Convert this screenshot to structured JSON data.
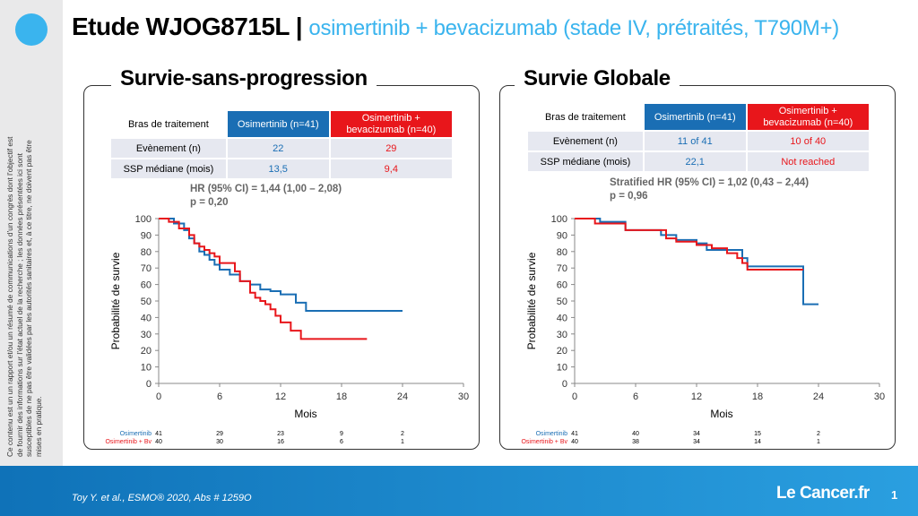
{
  "slide": {
    "title_main": "Etude WJOG8715L |",
    "title_sub": "osimertinib + bevacizumab (stade IV, prétraités, T790M+)",
    "sidebar_note": "Ce contenu est un un rapport et/ou un résumé de communications d’un congrès dont l’objectif est de fournir des informations sur l’état actuel de la recherche ; les données présentées ici sont susceptibles de ne pas être validées par les autorités sanitaires et, à ce titre, ne doivent pas être mises en pratique.",
    "citation": "Toy Y. et al., ESMO® 2020, Abs # 1259O",
    "logo_text": "Le Cancer.fr",
    "page_number": "1",
    "colors": {
      "blue": "#1a6eb4",
      "red": "#e8161b",
      "accent": "#3ab4ee"
    }
  },
  "pfs": {
    "title": "Survie-sans-progression",
    "table": {
      "header": [
        "Bras de traitement",
        "Osimertinib (n=41)",
        "Osimertinib + bevacizumab (n=40)"
      ],
      "rows": [
        [
          "Evènement (n)",
          "22",
          "29"
        ],
        [
          "SSP médiane (mois)",
          "13,5",
          "9,4"
        ]
      ]
    },
    "hr_line1": "HR (95% CI) = 1,44 (1,00 – 2,08)",
    "hr_line2": "p = 0,20"
  },
  "os": {
    "title": "Survie Globale",
    "table": {
      "header": [
        "Bras de traitement",
        "Osimertinib (n=41)",
        "Osimertinib + bevacizumab (n=40)"
      ],
      "rows": [
        [
          "Evènement (n)",
          "11 of 41",
          "10 of 40"
        ],
        [
          "SSP médiane (mois)",
          "22,1",
          "Not reached"
        ]
      ]
    },
    "hr_line1": "Stratified HR (95% CI) = 1,02 (0,43 – 2,44)",
    "hr_line2": "p = 0,96"
  },
  "chart_data": [
    {
      "type": "line",
      "title": "Survie-sans-progression",
      "xlabel": "Mois",
      "ylabel": "Probabilité de survie",
      "xlim": [
        0,
        30
      ],
      "ylim": [
        0,
        100
      ],
      "xticks": [
        0,
        6,
        12,
        18,
        24,
        30
      ],
      "yticks": [
        0,
        10,
        20,
        30,
        40,
        50,
        60,
        70,
        80,
        90,
        100
      ],
      "grid": false,
      "step": true,
      "series": [
        {
          "name": "Osimertinib",
          "color": "#1a6eb4",
          "x": [
            0,
            1.5,
            2.5,
            3,
            3.5,
            4,
            4.5,
            5,
            5.5,
            6,
            7,
            8,
            9,
            10,
            11,
            12,
            13.5,
            14.5,
            24
          ],
          "y": [
            100,
            97,
            93,
            88,
            85,
            80,
            78,
            75,
            72,
            69,
            66,
            62,
            60,
            57,
            56,
            54,
            49,
            44,
            44
          ]
        },
        {
          "name": "Osimertinib + Bv",
          "color": "#e8161b",
          "x": [
            0,
            1,
            2,
            3,
            3.5,
            4,
            4.5,
            5,
            5.5,
            6,
            7.5,
            8,
            9,
            9.5,
            10,
            10.5,
            11,
            11.5,
            12,
            13,
            14,
            20.5
          ],
          "y": [
            100,
            98,
            94,
            90,
            85,
            83,
            81,
            79,
            77,
            73,
            68,
            62,
            55,
            52,
            50,
            48,
            45,
            41,
            37,
            32,
            27,
            27
          ]
        }
      ],
      "risk_table": {
        "times": [
          0,
          6,
          12,
          18,
          24
        ],
        "rows": [
          {
            "name": "Osimertinib",
            "values": [
              "41",
              "29",
              "23",
              "9",
              "2"
            ]
          },
          {
            "name": "Osimertinib + Bv",
            "values": [
              "40",
              "30",
              "16",
              "6",
              "1"
            ]
          }
        ]
      }
    },
    {
      "type": "line",
      "title": "Survie Globale",
      "xlabel": "Mois",
      "ylabel": "Probabilité de survie",
      "xlim": [
        0,
        30
      ],
      "ylim": [
        0,
        100
      ],
      "xticks": [
        0,
        6,
        12,
        18,
        24,
        30
      ],
      "yticks": [
        0,
        10,
        20,
        30,
        40,
        50,
        60,
        70,
        80,
        90,
        100
      ],
      "grid": false,
      "step": true,
      "series": [
        {
          "name": "Osimertinib",
          "color": "#1a6eb4",
          "x": [
            0,
            2.5,
            5,
            8.5,
            10,
            12,
            13,
            16.5,
            17,
            22.5,
            24
          ],
          "y": [
            100,
            98,
            93,
            90,
            87,
            85,
            81,
            76,
            71,
            48,
            48
          ]
        },
        {
          "name": "Osimertinib + Bv",
          "color": "#e8161b",
          "x": [
            0,
            2,
            5,
            9,
            10,
            12,
            13.5,
            15,
            16,
            16.5,
            17,
            22.5
          ],
          "y": [
            100,
            97,
            93,
            88,
            86,
            84,
            82,
            79,
            76,
            73,
            69,
            69
          ]
        }
      ],
      "risk_table": {
        "times": [
          0,
          6,
          12,
          18,
          24
        ],
        "rows": [
          {
            "name": "Osimertinib",
            "values": [
              "41",
              "40",
              "34",
              "15",
              "2"
            ]
          },
          {
            "name": "Osimertinib + Bv",
            "values": [
              "40",
              "38",
              "34",
              "14",
              "1"
            ]
          }
        ]
      }
    }
  ]
}
